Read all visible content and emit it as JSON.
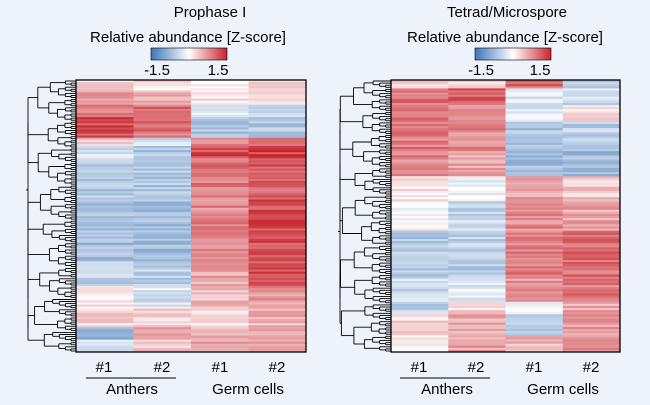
{
  "panels": [
    {
      "title": "Prophase I",
      "legend_title": "Relative abundance [Z-score]",
      "legend_min_label": "-1.5",
      "legend_max_label": "1.5",
      "columns": [
        "#1",
        "#2",
        "#1",
        "#2"
      ],
      "groups": [
        "Anthers",
        "Germ cells"
      ]
    },
    {
      "title": "Tetrad/Microspore",
      "legend_title": "Relative abundance [Z-score]",
      "legend_min_label": "-1.5",
      "legend_max_label": "1.5",
      "columns": [
        "#1",
        "#2",
        "#1",
        "#2"
      ],
      "groups": [
        "Anthers",
        "Germ cells"
      ]
    }
  ],
  "chart_data": [
    {
      "type": "heatmap",
      "title": "Prophase I",
      "legend_title": "Relative abundance [Z-score]",
      "zlim": [
        -1.5,
        1.5
      ],
      "colors": {
        "low": "#3f76b8",
        "mid": "#ffffff",
        "high": "#c8232b"
      },
      "columns": [
        "#1",
        "#2",
        "#1",
        "#2"
      ],
      "column_groups": [
        {
          "name": "Anthers",
          "columns": [
            0,
            1
          ]
        },
        {
          "name": "Germ cells",
          "columns": [
            2,
            3
          ]
        }
      ],
      "row_blocks": [
        {
          "rows": 6,
          "values": [
            0.3,
            0.2,
            0.1,
            0.3
          ]
        },
        {
          "rows": 6,
          "values": [
            0.6,
            0.5,
            0.2,
            0.3
          ]
        },
        {
          "rows": 6,
          "values": [
            0.8,
            1.0,
            -0.3,
            -0.4
          ]
        },
        {
          "rows": 10,
          "values": [
            1.2,
            1.0,
            -0.6,
            -0.6
          ]
        },
        {
          "rows": 4,
          "values": [
            0.4,
            -0.4,
            0.9,
            0.8
          ]
        },
        {
          "rows": 6,
          "values": [
            -0.3,
            -0.6,
            1.2,
            1.3
          ]
        },
        {
          "rows": 20,
          "values": [
            -0.6,
            -0.6,
            0.9,
            1.1
          ]
        },
        {
          "rows": 30,
          "values": [
            -0.7,
            -0.7,
            0.8,
            1.2
          ]
        },
        {
          "rows": 12,
          "values": [
            -0.5,
            -0.5,
            0.6,
            1.2
          ]
        },
        {
          "rows": 10,
          "values": [
            0.1,
            -0.3,
            0.5,
            0.7
          ]
        },
        {
          "rows": 10,
          "values": [
            0.3,
            0.3,
            0.2,
            0.5
          ]
        },
        {
          "rows": 6,
          "values": [
            -0.9,
            0.6,
            0.5,
            0.6
          ]
        },
        {
          "rows": 6,
          "values": [
            -0.2,
            0.4,
            0.6,
            0.7
          ]
        }
      ]
    },
    {
      "type": "heatmap",
      "title": "Tetrad/Microspore",
      "legend_title": "Relative abundance [Z-score]",
      "zlim": [
        -1.5,
        1.5
      ],
      "colors": {
        "low": "#3f76b8",
        "mid": "#ffffff",
        "high": "#c8232b"
      },
      "columns": [
        "#1",
        "#2",
        "#1",
        "#2"
      ],
      "column_groups": [
        {
          "name": "Anthers",
          "columns": [
            0,
            1
          ]
        },
        {
          "name": "Germ cells",
          "columns": [
            2,
            3
          ]
        }
      ],
      "row_blocks": [
        {
          "rows": 4,
          "values": [
            0.2,
            0.3,
            1.0,
            -0.5
          ]
        },
        {
          "rows": 8,
          "values": [
            1.0,
            1.1,
            -0.2,
            -0.4
          ]
        },
        {
          "rows": 8,
          "values": [
            0.9,
            0.8,
            -0.3,
            0.2
          ]
        },
        {
          "rows": 14,
          "values": [
            0.9,
            0.8,
            -0.6,
            -0.5
          ]
        },
        {
          "rows": 12,
          "values": [
            0.8,
            0.6,
            -0.7,
            -0.7
          ]
        },
        {
          "rows": 12,
          "values": [
            0.2,
            -0.1,
            0.6,
            0.4
          ]
        },
        {
          "rows": 14,
          "values": [
            0.0,
            -0.4,
            0.8,
            0.6
          ]
        },
        {
          "rows": 22,
          "values": [
            -0.6,
            -0.5,
            0.9,
            1.0
          ]
        },
        {
          "rows": 12,
          "values": [
            -0.4,
            -0.2,
            0.7,
            0.9
          ]
        },
        {
          "rows": 6,
          "values": [
            -0.5,
            0.3,
            0.0,
            0.6
          ]
        },
        {
          "rows": 10,
          "values": [
            0.3,
            0.5,
            -0.5,
            0.7
          ]
        },
        {
          "rows": 8,
          "values": [
            0.1,
            0.6,
            0.5,
            0.8
          ]
        }
      ]
    }
  ]
}
